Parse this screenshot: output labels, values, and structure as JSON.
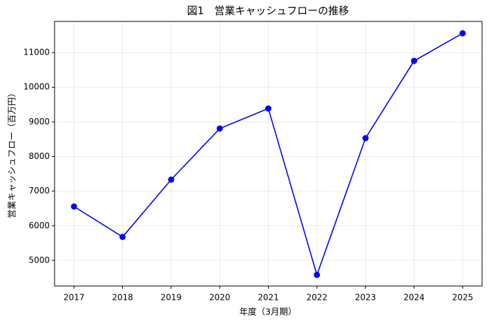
{
  "chart_data": {
    "type": "line",
    "title": "図1　営業キャッシュフローの推移",
    "xlabel": "年度（3月期）",
    "ylabel": "営業キャッシュフロー（百万円）",
    "x": [
      2017,
      2018,
      2019,
      2020,
      2021,
      2022,
      2023,
      2024,
      2025
    ],
    "series": [
      {
        "name": "営業キャッシュフロー",
        "color": "#0000ff",
        "values": [
          6555,
          5678,
          7332,
          8807,
          9385,
          4581,
          8528,
          10760,
          11558
        ]
      }
    ],
    "xlim": [
      2016.6,
      2025.4
    ],
    "xticks": [
      2017,
      2018,
      2019,
      2020,
      2021,
      2022,
      2023,
      2024,
      2025
    ],
    "ylim": [
      4260,
      11900
    ],
    "yticks": [
      5000,
      6000,
      7000,
      8000,
      9000,
      10000,
      11000
    ],
    "grid": true
  }
}
